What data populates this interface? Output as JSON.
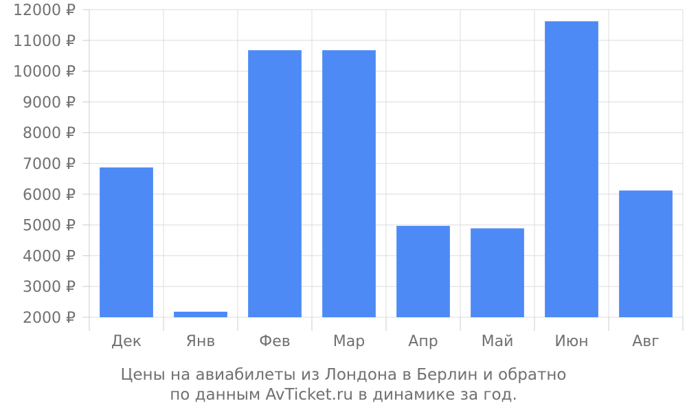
{
  "chart_data": {
    "type": "bar",
    "categories": [
      "Дек",
      "Янв",
      "Фев",
      "Мар",
      "Апр",
      "Май",
      "Июн",
      "Авг"
    ],
    "values": [
      6870,
      2180,
      10680,
      10680,
      4970,
      4890,
      11620,
      6120
    ],
    "ylim": [
      2000,
      12000
    ],
    "yticks": [
      2000,
      3000,
      4000,
      5000,
      6000,
      7000,
      8000,
      9000,
      10000,
      11000,
      12000
    ],
    "ytick_suffix": " ₽",
    "grid": true,
    "bar_color": "#4d8af6",
    "caption_line1": "Цены на авиабилеты из Лондона в Берлин и обратно",
    "caption_line2": "по данным AvTicket.ru в динамике за год."
  }
}
